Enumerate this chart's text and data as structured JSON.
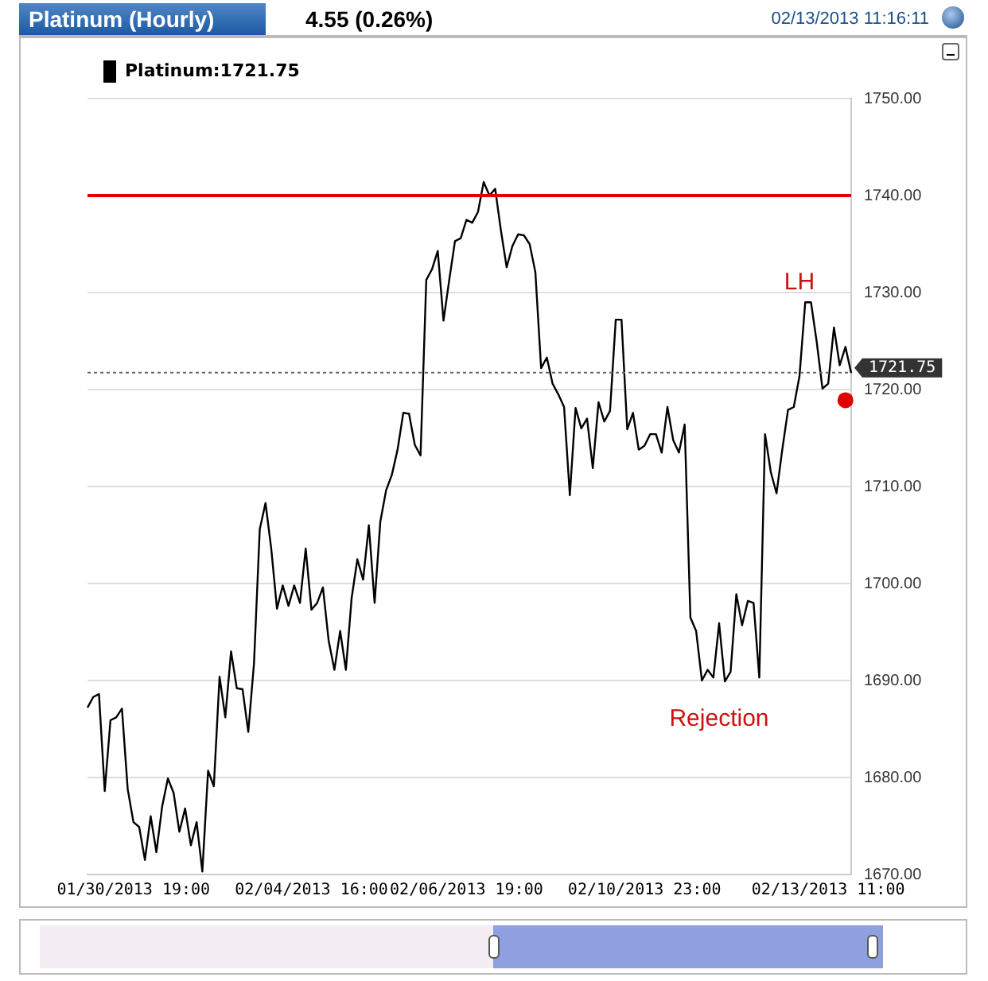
{
  "chart_data": {
    "type": "line",
    "title": "Platinum (Hourly)",
    "subtitle": "4.55 (0.26%)",
    "annotations": [
      "02/13/2013 11:16:11",
      "LH",
      "Rejection"
    ],
    "categories": [
      null,
      null,
      null,
      null,
      null,
      null,
      null,
      null,
      "01/30/2013 19:00",
      null,
      null,
      null,
      null,
      null,
      null,
      null,
      null,
      null,
      null,
      null,
      null,
      null,
      null,
      null,
      null,
      null,
      null,
      null,
      null,
      null,
      null,
      null,
      null,
      null,
      null,
      null,
      null,
      null,
      null,
      "02/04/2013 16:00",
      null,
      null,
      null,
      null,
      null,
      null,
      null,
      null,
      null,
      null,
      null,
      null,
      null,
      null,
      null,
      null,
      null,
      null,
      null,
      null,
      null,
      null,
      null,
      null,
      null,
      null,
      "02/06/2013 19:00",
      null,
      null,
      null,
      null,
      null,
      null,
      null,
      null,
      null,
      null,
      null,
      null,
      null,
      null,
      null,
      null,
      null,
      null,
      null,
      null,
      null,
      null,
      null,
      null,
      null,
      null,
      null,
      null,
      null,
      null,
      "02/10/2013 23:00",
      null,
      null,
      null,
      null,
      null,
      null,
      null,
      null,
      null,
      null,
      null,
      null,
      null,
      null,
      null,
      null,
      null,
      null,
      null,
      null,
      null,
      null,
      null,
      null,
      null,
      null,
      null,
      null,
      null,
      null,
      null,
      "02/13/2013 11:00",
      null,
      null,
      null,
      null
    ],
    "series": [
      {
        "name": "Platinum:1721.75",
        "type": "line",
        "color": "#000000",
        "values": [
          1687.2,
          1688.3,
          1688.6,
          1678.6,
          1685.9,
          1686.2,
          1687.1,
          1678.8,
          1675.4,
          1674.9,
          1671.5,
          1676,
          1672.3,
          1677,
          1679.9,
          1678.4,
          1674.4,
          1676.8,
          1673,
          1675.4,
          1670.3,
          1680.7,
          1679.1,
          1690.4,
          1686.2,
          1693,
          1689.2,
          1689.1,
          1684.7,
          1691.8,
          1705.6,
          1708.3,
          1703.6,
          1697.4,
          1699.8,
          1697.7,
          1699.8,
          1698,
          1703.6,
          1697.3,
          1698,
          1699.6,
          1694.1,
          1691.1,
          1695.1,
          1691.1,
          1698.5,
          1702.5,
          1700.4,
          1706,
          1698,
          1706.4,
          1709.6,
          1711.2,
          1713.8,
          1717.6,
          1717.5,
          1714.3,
          1713.2,
          1731.3,
          1732.4,
          1734.3,
          1727.1,
          1731.3,
          1735.3,
          1735.6,
          1737.5,
          1737.2,
          1738.3,
          1741.4,
          1740,
          1740.7,
          1736.4,
          1732.6,
          1734.8,
          1736,
          1735.9,
          1735,
          1732.1,
          1722.2,
          1723.3,
          1720.6,
          1719.5,
          1718.2,
          1709.1,
          1718.1,
          1716,
          1717,
          1711.9,
          1718.7,
          1716.7,
          1717.8,
          1727.2,
          1727.2,
          1715.9,
          1717.6,
          1713.8,
          1714.2,
          1715.4,
          1715.4,
          1713.5,
          1718.2,
          1714.8,
          1713.5,
          1716.4,
          1696.5,
          1695.1,
          1690,
          1691.1,
          1690.3,
          1695.9,
          1689.9,
          1690.9,
          1698.9,
          1695.7,
          1698.2,
          1698,
          1690.3,
          1715.4,
          1711.5,
          1709.3,
          1713.8,
          1717.9,
          1718.2,
          1721.4,
          1729,
          1729,
          1724.9,
          1720.1,
          1720.6,
          1726.4,
          1722.5,
          1724.4,
          1721.7
        ]
      },
      {
        "type": "scatter",
        "color": "#e00000",
        "marker": "circle",
        "values": [
          null,
          null,
          null,
          null,
          null,
          null,
          null,
          null,
          null,
          null,
          null,
          null,
          null,
          null,
          null,
          null,
          null,
          null,
          null,
          null,
          null,
          null,
          null,
          null,
          null,
          null,
          null,
          null,
          null,
          null,
          null,
          null,
          null,
          null,
          null,
          null,
          null,
          null,
          null,
          null,
          null,
          null,
          null,
          null,
          null,
          null,
          null,
          null,
          null,
          null,
          null,
          null,
          null,
          null,
          null,
          null,
          null,
          null,
          null,
          null,
          null,
          null,
          null,
          null,
          null,
          null,
          null,
          null,
          null,
          null,
          null,
          null,
          null,
          null,
          null,
          null,
          null,
          null,
          null,
          null,
          null,
          null,
          null,
          null,
          null,
          null,
          null,
          null,
          null,
          null,
          null,
          null,
          null,
          null,
          null,
          null,
          null,
          null,
          null,
          null,
          null,
          null,
          null,
          null,
          null,
          null,
          null,
          null,
          null,
          null,
          null,
          null,
          null,
          null,
          null,
          null,
          null,
          null,
          null,
          null,
          null,
          null,
          null,
          null,
          null,
          null,
          null,
          null,
          null,
          null,
          null,
          null,
          1718.9,
          null
        ]
      }
    ],
    "ylim": [
      1670,
      1750
    ],
    "yticks": [
      {
        "value": 1670,
        "label": "1670.00"
      },
      {
        "value": 1680,
        "label": "1680.00"
      },
      {
        "value": 1690,
        "label": "1690.00"
      },
      {
        "value": 1700,
        "label": "1700.00"
      },
      {
        "value": 1710,
        "label": "1710.00"
      },
      {
        "value": 1720,
        "label": "1720.00"
      },
      {
        "value": 1730,
        "label": "1730.00"
      },
      {
        "value": 1740,
        "label": "1740.00"
      },
      {
        "value": 1750,
        "label": "1750.00"
      }
    ],
    "ref_lines": [
      {
        "axis": "y",
        "value": 1740,
        "color": "#e00000",
        "line_style": "solid"
      },
      {
        "axis": "y",
        "value": 1721.75,
        "label": "1721.75",
        "color": "#666666",
        "line_style": "dotted"
      }
    ],
    "grid": "y",
    "legend": "top left",
    "marker": "none",
    "line_style": "solid"
  }
}
